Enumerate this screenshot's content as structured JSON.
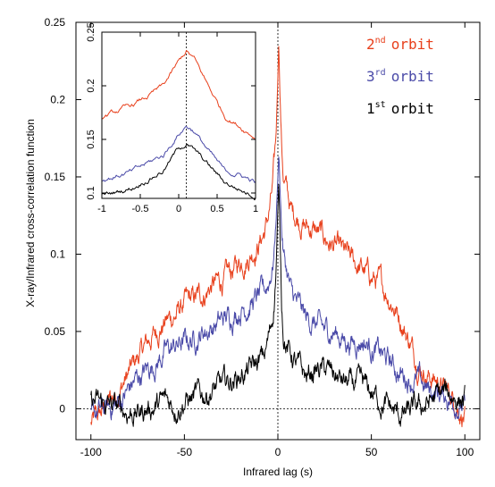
{
  "chart_data": [
    {
      "type": "line",
      "title": "",
      "xlabel": "Infrared lag (s)",
      "ylabel": "X-ray/Infrared cross-correlation function",
      "xlim": [
        -108,
        108
      ],
      "ylim": [
        -0.02,
        0.25
      ],
      "xticks": [
        -100,
        -50,
        0,
        50,
        100
      ],
      "yticks": [
        0,
        0.05,
        0.1,
        0.15,
        0.2,
        0.25
      ],
      "xtick_labels": [
        "-100",
        "-50",
        "0",
        "50",
        "100"
      ],
      "ytick_labels": [
        "0",
        "0.05",
        "0.1",
        "0.15",
        "0.2",
        "0.25"
      ],
      "grid": false,
      "reference_lines": {
        "x": 0,
        "y": 0
      },
      "legend": {
        "placement": "top-right",
        "entries": [
          {
            "base": "2",
            "sup": "nd",
            "text": "orbit",
            "color": "#e8401c"
          },
          {
            "base": "3",
            "sup": "rd",
            "text": "orbit",
            "color": "#4a4aa8"
          },
          {
            "base": "1",
            "sup": "st",
            "text": "orbit",
            "color": "#000000"
          }
        ]
      },
      "series": [
        {
          "label": "2nd orbit",
          "color": "#e8401c",
          "x": [
            -100,
            -95,
            -90,
            -85,
            -80,
            -75,
            -70,
            -65,
            -60,
            -55,
            -50,
            -45,
            -40,
            -35,
            -30,
            -25,
            -20,
            -15,
            -10,
            -7,
            -5,
            -3,
            -2,
            -1,
            0,
            0.5,
            1,
            2,
            3,
            5,
            7,
            10,
            15,
            20,
            25,
            30,
            35,
            40,
            45,
            50,
            55,
            60,
            65,
            70,
            75,
            80,
            85,
            90,
            95,
            100
          ],
          "y": [
            -0.01,
            -0.004,
            0.005,
            0.012,
            0.022,
            0.033,
            0.042,
            0.05,
            0.057,
            0.06,
            0.068,
            0.07,
            0.074,
            0.08,
            0.082,
            0.088,
            0.095,
            0.1,
            0.108,
            0.115,
            0.125,
            0.14,
            0.155,
            0.175,
            0.215,
            0.238,
            0.21,
            0.172,
            0.15,
            0.14,
            0.128,
            0.125,
            0.118,
            0.115,
            0.11,
            0.105,
            0.1,
            0.095,
            0.09,
            0.085,
            0.08,
            0.072,
            0.06,
            0.045,
            0.03,
            0.022,
            0.018,
            0.012,
            0.005,
            -0.005
          ]
        },
        {
          "label": "3rd orbit",
          "color": "#4a4aa8",
          "x": [
            -100,
            -95,
            -90,
            -85,
            -80,
            -75,
            -70,
            -65,
            -60,
            -55,
            -50,
            -45,
            -40,
            -35,
            -30,
            -25,
            -20,
            -15,
            -10,
            -7,
            -5,
            -3,
            -2,
            -1,
            0,
            0.5,
            1,
            2,
            3,
            5,
            7,
            10,
            15,
            20,
            25,
            30,
            35,
            40,
            45,
            50,
            55,
            60,
            65,
            70,
            75,
            80,
            85,
            90,
            95,
            100
          ],
          "y": [
            -0.005,
            -0.002,
            0.0,
            0.004,
            0.012,
            0.02,
            0.025,
            0.03,
            0.037,
            0.04,
            0.043,
            0.045,
            0.05,
            0.053,
            0.057,
            0.06,
            0.065,
            0.068,
            0.072,
            0.076,
            0.082,
            0.092,
            0.102,
            0.122,
            0.15,
            0.165,
            0.15,
            0.118,
            0.1,
            0.088,
            0.075,
            0.068,
            0.058,
            0.055,
            0.05,
            0.05,
            0.045,
            0.043,
            0.045,
            0.04,
            0.035,
            0.03,
            0.023,
            0.02,
            0.018,
            0.012,
            0.01,
            0.008,
            0.005,
            0.0
          ]
        },
        {
          "label": "1st orbit",
          "color": "#000000",
          "x": [
            -100,
            -95,
            -90,
            -85,
            -80,
            -75,
            -70,
            -65,
            -60,
            -55,
            -50,
            -45,
            -40,
            -35,
            -30,
            -25,
            -20,
            -15,
            -10,
            -7,
            -5,
            -3,
            -2,
            -1,
            0,
            0.5,
            1,
            2,
            3,
            5,
            7,
            10,
            15,
            20,
            25,
            30,
            35,
            40,
            45,
            50,
            55,
            60,
            65,
            70,
            75,
            80,
            85,
            90,
            95,
            100
          ],
          "y": [
            0.005,
            0.003,
            0.002,
            0.0,
            -0.002,
            -0.003,
            0.0,
            0.002,
            0.005,
            0.002,
            0.005,
            0.007,
            0.009,
            0.012,
            0.015,
            0.018,
            0.022,
            0.025,
            0.03,
            0.035,
            0.045,
            0.058,
            0.07,
            0.09,
            0.13,
            0.145,
            0.12,
            0.07,
            0.05,
            0.04,
            0.035,
            0.028,
            0.02,
            0.025,
            0.025,
            0.022,
            0.017,
            0.015,
            0.015,
            0.01,
            0.005,
            0.0,
            -0.005,
            -0.003,
            0.0,
            0.003,
            0.008,
            0.01,
            0.008,
            0.005
          ]
        }
      ]
    },
    {
      "type": "line",
      "title": "",
      "xlabel": "",
      "ylabel": "",
      "xlim": [
        -1,
        1
      ],
      "ylim": [
        0.095,
        0.25
      ],
      "xticks": [
        -1,
        -0.5,
        0,
        0.5,
        1
      ],
      "yticks": [
        0.1,
        0.15,
        0.2,
        0.25
      ],
      "xtick_labels": [
        "-1",
        "-0.5",
        "0",
        "0.5",
        "1"
      ],
      "ytick_labels": [
        "0.1",
        "0.15",
        "0.2",
        "0.25"
      ],
      "grid": false,
      "reference_lines": {
        "x": 0.1
      },
      "series": [
        {
          "label": "2nd orbit",
          "color": "#e8401c",
          "x": [
            -1,
            -0.8,
            -0.6,
            -0.4,
            -0.2,
            0,
            0.1,
            0.2,
            0.4,
            0.6,
            0.8,
            1
          ],
          "y": [
            0.171,
            0.176,
            0.182,
            0.19,
            0.2,
            0.222,
            0.232,
            0.225,
            0.198,
            0.172,
            0.162,
            0.152
          ]
        },
        {
          "label": "3rd orbit",
          "color": "#4a4aa8",
          "x": [
            -1,
            -0.8,
            -0.6,
            -0.4,
            -0.2,
            0,
            0.1,
            0.2,
            0.4,
            0.6,
            0.8,
            1
          ],
          "y": [
            0.112,
            0.116,
            0.12,
            0.128,
            0.135,
            0.155,
            0.163,
            0.158,
            0.138,
            0.12,
            0.117,
            0.11
          ]
        },
        {
          "label": "1st orbit",
          "color": "#000000",
          "x": [
            -1,
            -0.8,
            -0.6,
            -0.4,
            -0.2,
            0,
            0.1,
            0.2,
            0.4,
            0.6,
            0.8,
            1
          ],
          "y": [
            0.098,
            0.101,
            0.105,
            0.113,
            0.121,
            0.142,
            0.146,
            0.14,
            0.125,
            0.11,
            0.103,
            0.097
          ]
        }
      ]
    }
  ]
}
